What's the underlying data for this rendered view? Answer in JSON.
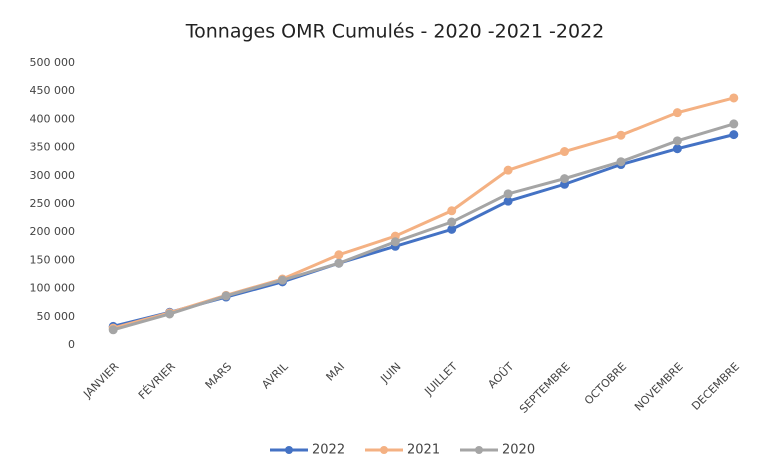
{
  "chart_data": {
    "type": "line",
    "title": "Tonnages OMR Cumulés - 2020 -2021 -2022",
    "categories": [
      "JANVIER",
      "FÉVRIER",
      "MARS",
      "AVRIL",
      "MAI",
      "JUIN",
      "JUILLET",
      "AOÛT",
      "SEPTEMBRE",
      "OCTOBRE",
      "NOVEMBRE",
      "DECEMBRE"
    ],
    "series": [
      {
        "name": "2022",
        "color": "#4472c4",
        "values": [
          33000,
          58000,
          85000,
          112000,
          145000,
          175000,
          205000,
          255000,
          285000,
          320000,
          348000,
          373000
        ]
      },
      {
        "name": "2021",
        "color": "#f4b183",
        "values": [
          30000,
          57000,
          88000,
          117000,
          160000,
          193000,
          238000,
          310000,
          343000,
          372000,
          412000,
          438000
        ]
      },
      {
        "name": "2020",
        "color": "#a5a5a5",
        "values": [
          27000,
          55000,
          87000,
          115000,
          145000,
          183000,
          218000,
          268000,
          295000,
          325000,
          362000,
          392000
        ]
      }
    ],
    "ylim": [
      0,
      500000
    ],
    "yticks": [
      0,
      {
        "value": 50000,
        "label": "50 000"
      },
      {
        "value": 100000,
        "label": "100 000"
      },
      {
        "value": 150000,
        "label": "150 000"
      },
      {
        "value": 200000,
        "label": "200 000"
      },
      {
        "value": 250000,
        "label": "250 000"
      },
      {
        "value": 300000,
        "label": "300 000"
      },
      {
        "value": 350000,
        "label": "350 000"
      },
      {
        "value": 400000,
        "label": "400 000"
      },
      {
        "value": 450000,
        "label": "450 000"
      },
      {
        "value": 500000,
        "label": "500 000"
      }
    ],
    "grid": false,
    "legend": "bottom"
  }
}
